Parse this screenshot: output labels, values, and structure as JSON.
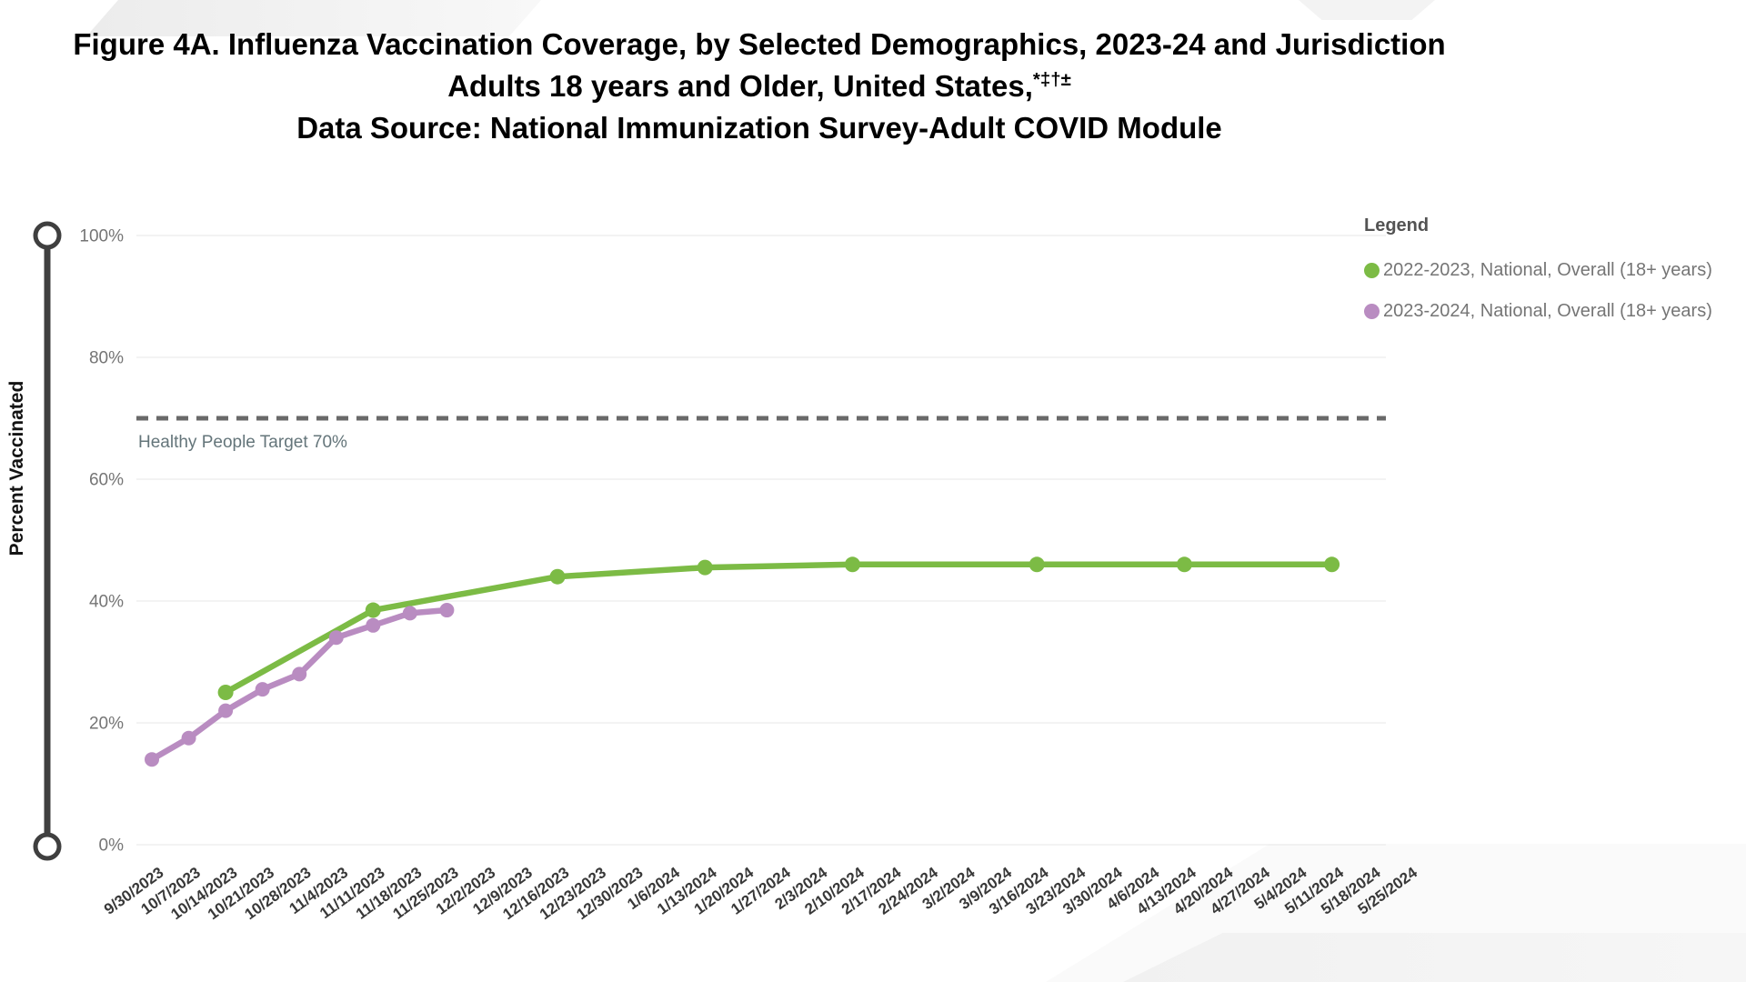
{
  "title": {
    "line1": "Figure 4A. Influenza Vaccination Coverage, by Selected Demographics, 2023-24 and Jurisdiction",
    "line2_main": "Adults 18 years and Older, United States,",
    "line2_sup": "*‡†±",
    "line3": "Data Source: National Immunization Survey-Adult COVID Module"
  },
  "y_axis": {
    "title": "Percent Vaccinated",
    "ticks": [
      {
        "value": 0,
        "label": "0%"
      },
      {
        "value": 20,
        "label": "20%"
      },
      {
        "value": 40,
        "label": "40%"
      },
      {
        "value": 60,
        "label": "60%"
      },
      {
        "value": 80,
        "label": "80%"
      },
      {
        "value": 100,
        "label": "100%"
      }
    ]
  },
  "target_line": {
    "label": "Healthy People Target 70%",
    "value": 70,
    "color": "#696969",
    "label_color": "#64757a"
  },
  "legend": {
    "title": "Legend",
    "entries": [
      {
        "label": "2022-2023, National, Overall (18+ years)",
        "color": "#7cbb45"
      },
      {
        "label": "2023-2024, National, Overall (18+ years)",
        "color": "#b98cc1"
      }
    ]
  },
  "chart_data": {
    "type": "line",
    "title": "Influenza Vaccination Coverage, Adults 18+, United States",
    "xlabel": "",
    "ylabel": "Percent Vaccinated",
    "ylim": [
      0,
      100
    ],
    "grid": true,
    "legend_position": "top-right",
    "x_categories": [
      "9/30/2023",
      "10/7/2023",
      "10/14/2023",
      "10/21/2023",
      "10/28/2023",
      "11/4/2023",
      "11/11/2023",
      "11/18/2023",
      "11/25/2023",
      "12/2/2023",
      "12/9/2023",
      "12/16/2023",
      "12/23/2023",
      "12/30/2023",
      "1/6/2024",
      "1/13/2024",
      "1/20/2024",
      "1/27/2024",
      "2/3/2024",
      "2/10/2024",
      "2/17/2024",
      "2/24/2024",
      "3/2/2024",
      "3/9/2024",
      "3/16/2024",
      "3/23/2024",
      "3/30/2024",
      "4/6/2024",
      "4/13/2024",
      "4/20/2024",
      "4/27/2024",
      "5/4/2024",
      "5/11/2024",
      "5/18/2024",
      "5/25/2024"
    ],
    "series": [
      {
        "name": "2022-2023, National, Overall (18+ years)",
        "color": "#7cbb45",
        "dot_radius": 8.5,
        "points": [
          {
            "x": "10/14/2023",
            "y": 25
          },
          {
            "x": "11/11/2023",
            "y": 38.5
          },
          {
            "x": "12/16/2023",
            "y": 44
          },
          {
            "x": "1/13/2024",
            "y": 45.5
          },
          {
            "x": "2/10/2024",
            "y": 46
          },
          {
            "x": "3/16/2024",
            "y": 46
          },
          {
            "x": "4/13/2024",
            "y": 46
          },
          {
            "x": "5/11/2024",
            "y": 46
          }
        ]
      },
      {
        "name": "2023-2024, National, Overall (18+ years)",
        "color": "#b98cc1",
        "dot_radius": 8,
        "points": [
          {
            "x": "9/30/2023",
            "y": 14
          },
          {
            "x": "10/7/2023",
            "y": 17.5
          },
          {
            "x": "10/14/2023",
            "y": 22
          },
          {
            "x": "10/21/2023",
            "y": 25.5
          },
          {
            "x": "10/28/2023",
            "y": 28
          },
          {
            "x": "11/4/2023",
            "y": 34
          },
          {
            "x": "11/11/2023",
            "y": 36
          },
          {
            "x": "11/18/2023",
            "y": 38
          },
          {
            "x": "11/25/2023",
            "y": 38.5
          }
        ]
      }
    ],
    "reference_line": {
      "label": "Healthy People Target 70%",
      "value": 70
    }
  }
}
